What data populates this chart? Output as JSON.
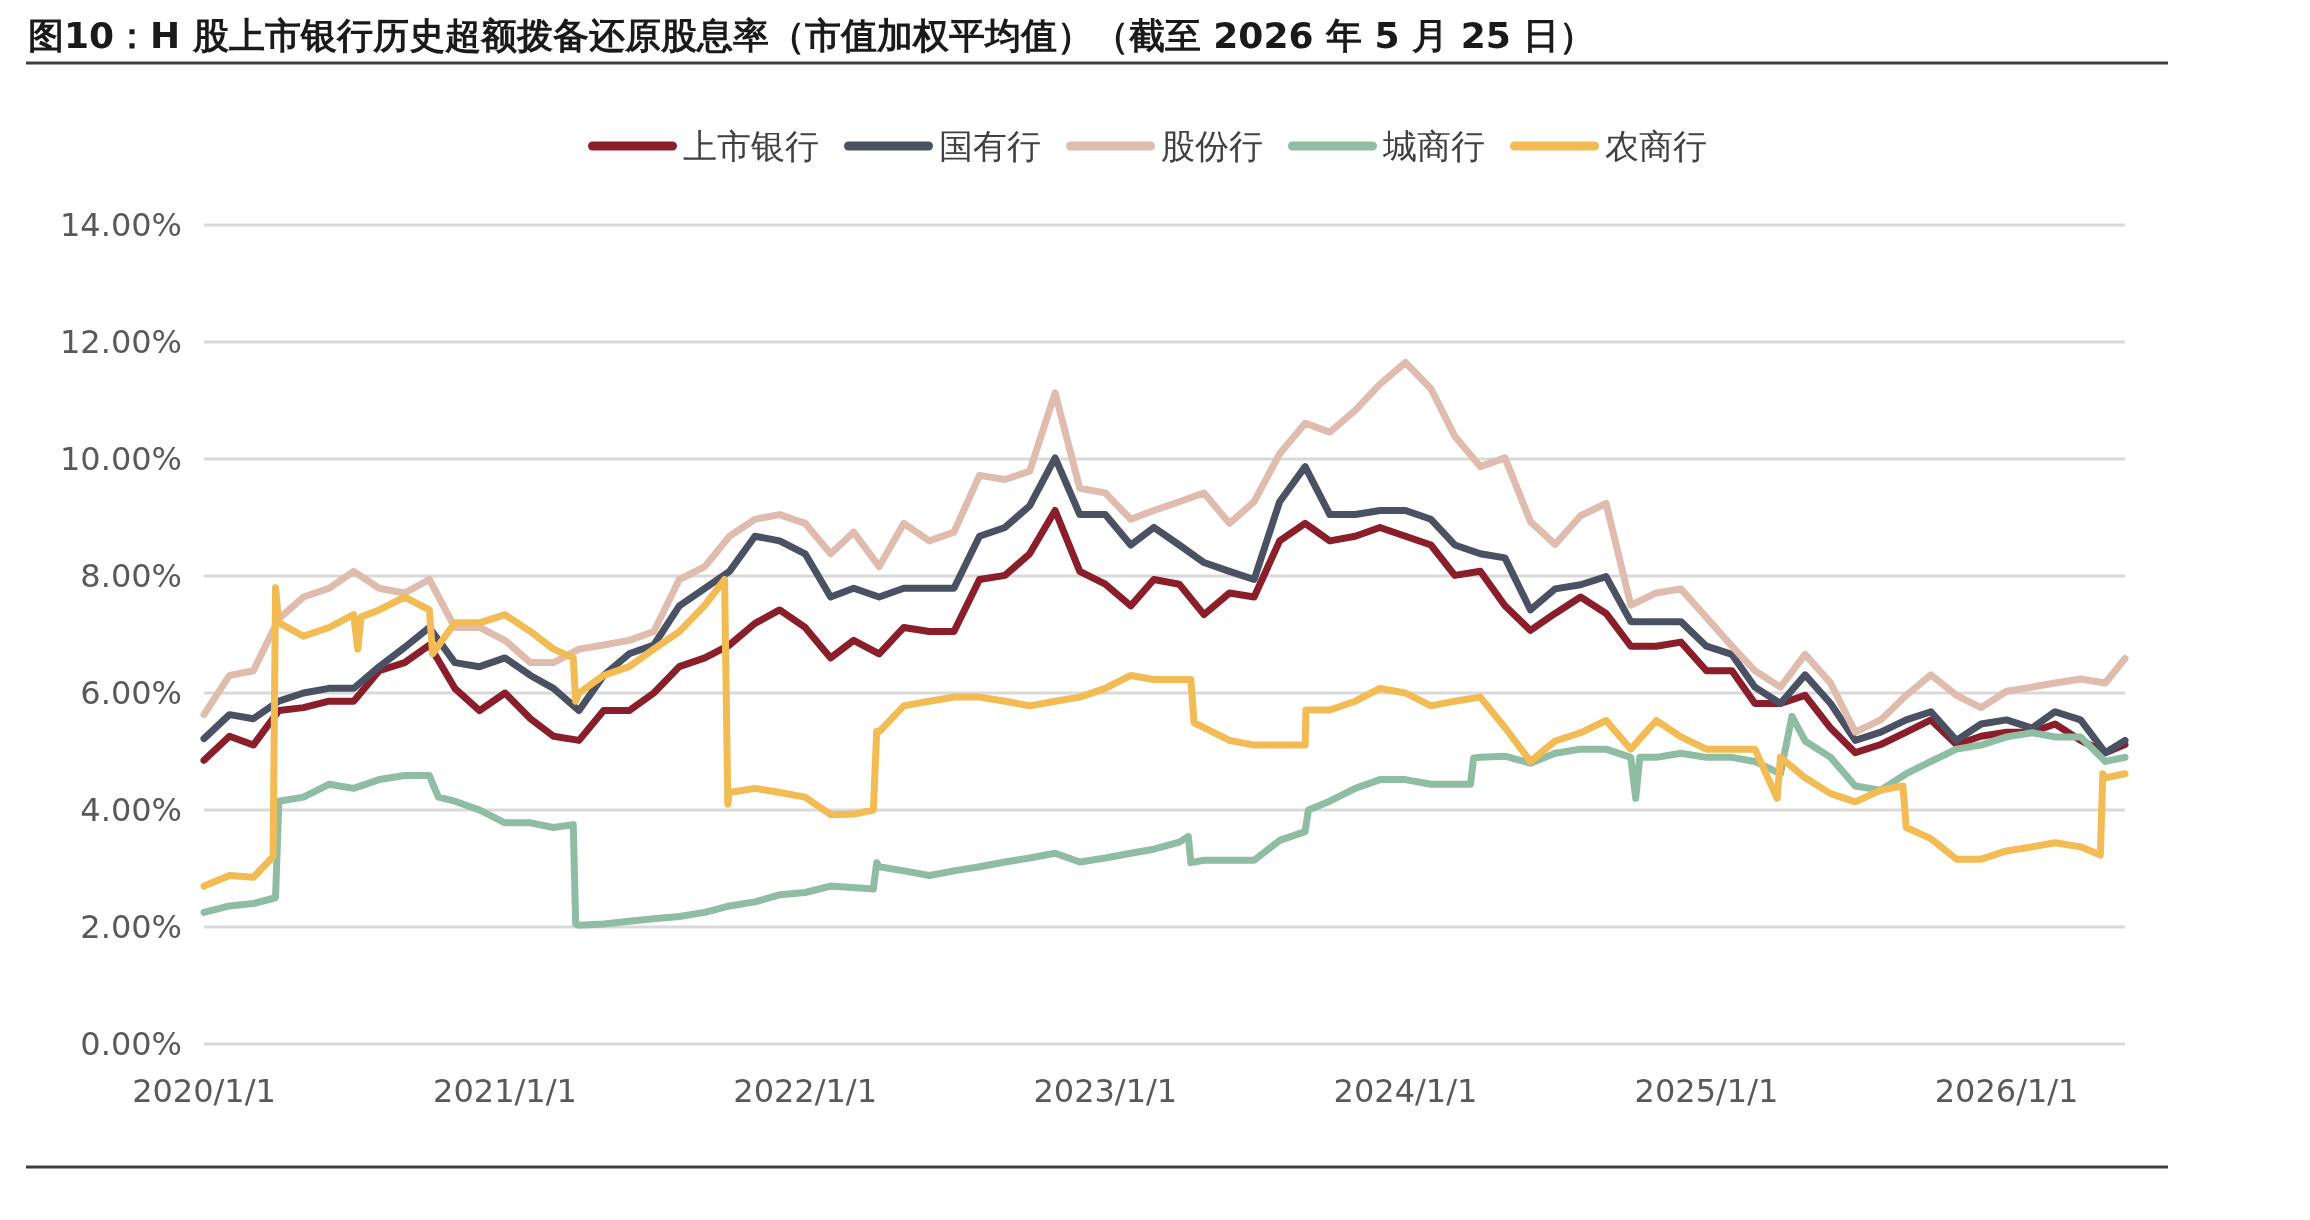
{
  "chart_data": {
    "type": "line",
    "title": "图10：H 股上市银行历史超额拨备还原股息率（市值加权平均值）（截至 2026 年 5 月 25 日）",
    "xlim": [
      "2020-01-01",
      "2026-05-25"
    ],
    "xticks": [
      {
        "value": "2020-01-01",
        "label": "2020/1/1"
      },
      {
        "value": "2021-01-01",
        "label": "2021/1/1"
      },
      {
        "value": "2022-01-01",
        "label": "2022/1/1"
      },
      {
        "value": "2023-01-01",
        "label": "2023/1/1"
      },
      {
        "value": "2024-01-01",
        "label": "2024/1/1"
      },
      {
        "value": "2025-01-01",
        "label": "2025/1/1"
      },
      {
        "value": "2026-01-01",
        "label": "2026/1/1"
      }
    ],
    "ylim": [
      0,
      14
    ],
    "yticks": [
      {
        "value": 0,
        "label": "0.00%"
      },
      {
        "value": 2,
        "label": "2.00%"
      },
      {
        "value": 4,
        "label": "4.00%"
      },
      {
        "value": 6,
        "label": "6.00%"
      },
      {
        "value": 8,
        "label": "8.00%"
      },
      {
        "value": 10,
        "label": "10.00%"
      },
      {
        "value": 12,
        "label": "12.00%"
      },
      {
        "value": 14,
        "label": "14.00%"
      }
    ],
    "grid": "y",
    "legend": "top",
    "marker": "none",
    "line_style": "solid",
    "series": [
      {
        "name": "上市银行",
        "color": "#8b1e2b",
        "x": [
          "2020-01-01",
          "2020-02-01",
          "2020-03-01",
          "2020-04-01",
          "2020-05-01",
          "2020-06-01",
          "2020-07-01",
          "2020-08-01",
          "2020-09-01",
          "2020-10-01",
          "2020-11-01",
          "2020-12-01",
          "2021-01-01",
          "2021-02-01",
          "2021-03-01",
          "2021-04-01",
          "2021-05-01",
          "2021-06-01",
          "2021-07-01",
          "2021-08-01",
          "2021-09-01",
          "2021-10-01",
          "2021-11-01",
          "2021-12-01",
          "2022-01-01",
          "2022-02-01",
          "2022-03-01",
          "2022-04-01",
          "2022-05-01",
          "2022-06-01",
          "2022-07-01",
          "2022-08-01",
          "2022-09-01",
          "2022-10-01",
          "2022-11-01",
          "2022-12-01",
          "2023-01-01",
          "2023-02-01",
          "2023-03-01",
          "2023-04-01",
          "2023-05-01",
          "2023-06-01",
          "2023-07-01",
          "2023-08-01",
          "2023-09-01",
          "2023-10-01",
          "2023-11-01",
          "2023-12-01",
          "2024-01-01",
          "2024-02-01",
          "2024-03-01",
          "2024-04-01",
          "2024-05-01",
          "2024-06-01",
          "2024-07-01",
          "2024-08-01",
          "2024-09-01",
          "2024-10-01",
          "2024-11-01",
          "2024-12-01",
          "2025-01-01",
          "2025-02-01",
          "2025-03-01",
          "2025-04-01",
          "2025-05-01",
          "2025-06-01",
          "2025-07-01",
          "2025-08-01",
          "2025-09-01",
          "2025-10-01",
          "2025-11-01",
          "2025-12-01",
          "2026-01-01",
          "2026-02-01",
          "2026-03-01",
          "2026-04-01",
          "2026-05-01",
          "2026-05-25"
        ],
        "values": [
          4.85,
          5.26,
          5.11,
          5.7,
          5.75,
          5.86,
          5.86,
          6.38,
          6.52,
          6.82,
          6.08,
          5.7,
          6.0,
          5.56,
          5.26,
          5.19,
          5.7,
          5.7,
          6.0,
          6.45,
          6.6,
          6.82,
          7.19,
          7.42,
          7.12,
          6.6,
          6.9,
          6.67,
          7.12,
          7.05,
          7.05,
          7.94,
          8.01,
          8.38,
          9.12,
          8.08,
          7.86,
          7.49,
          7.94,
          7.86,
          7.34,
          7.71,
          7.64,
          8.6,
          8.9,
          8.6,
          8.68,
          8.83,
          8.68,
          8.53,
          8.01,
          8.08,
          7.49,
          7.07,
          7.36,
          7.64,
          7.36,
          6.8,
          6.8,
          6.87,
          6.38,
          6.38,
          5.82,
          5.82,
          5.96,
          5.4,
          4.98,
          5.12,
          5.33,
          5.54,
          5.12,
          5.26,
          5.33,
          5.33,
          5.47,
          5.19,
          4.98,
          5.12
        ]
      },
      {
        "name": "国有行",
        "color": "#4a5163",
        "x": [
          "2020-01-01",
          "2020-02-01",
          "2020-03-01",
          "2020-04-01",
          "2020-05-01",
          "2020-06-01",
          "2020-07-01",
          "2020-08-01",
          "2020-09-01",
          "2020-10-01",
          "2020-11-01",
          "2020-12-01",
          "2021-01-01",
          "2021-02-01",
          "2021-03-01",
          "2021-04-01",
          "2021-05-01",
          "2021-06-01",
          "2021-07-01",
          "2021-08-01",
          "2021-09-01",
          "2021-10-01",
          "2021-11-01",
          "2021-12-01",
          "2022-01-01",
          "2022-02-01",
          "2022-03-01",
          "2022-04-01",
          "2022-05-01",
          "2022-06-01",
          "2022-07-01",
          "2022-08-01",
          "2022-09-01",
          "2022-10-01",
          "2022-11-01",
          "2022-12-01",
          "2023-01-01",
          "2023-02-01",
          "2023-03-01",
          "2023-04-01",
          "2023-05-01",
          "2023-06-01",
          "2023-07-01",
          "2023-08-01",
          "2023-09-01",
          "2023-10-01",
          "2023-11-01",
          "2023-12-01",
          "2024-01-01",
          "2024-02-01",
          "2024-03-01",
          "2024-04-01",
          "2024-05-01",
          "2024-06-01",
          "2024-07-01",
          "2024-08-01",
          "2024-09-01",
          "2024-10-01",
          "2024-11-01",
          "2024-12-01",
          "2025-01-01",
          "2025-02-01",
          "2025-03-01",
          "2025-04-01",
          "2025-05-01",
          "2025-06-01",
          "2025-07-01",
          "2025-08-01",
          "2025-09-01",
          "2025-10-01",
          "2025-11-01",
          "2025-12-01",
          "2026-01-01",
          "2026-02-01",
          "2026-03-01",
          "2026-04-01",
          "2026-05-01",
          "2026-05-25"
        ],
        "values": [
          5.22,
          5.63,
          5.56,
          5.86,
          6.0,
          6.08,
          6.08,
          6.45,
          6.78,
          7.12,
          6.52,
          6.45,
          6.6,
          6.3,
          6.08,
          5.7,
          6.3,
          6.67,
          6.82,
          7.49,
          7.79,
          8.08,
          8.68,
          8.6,
          8.38,
          7.64,
          7.79,
          7.64,
          7.79,
          7.79,
          7.79,
          8.68,
          8.83,
          9.2,
          10.02,
          9.05,
          9.05,
          8.53,
          8.83,
          8.53,
          8.23,
          8.08,
          7.94,
          9.27,
          9.87,
          9.05,
          9.05,
          9.12,
          9.12,
          8.97,
          8.53,
          8.38,
          8.31,
          7.42,
          7.78,
          7.85,
          7.99,
          7.22,
          7.22,
          7.22,
          6.8,
          6.66,
          6.1,
          5.82,
          6.31,
          5.82,
          5.19,
          5.33,
          5.54,
          5.68,
          5.19,
          5.47,
          5.54,
          5.4,
          5.68,
          5.54,
          4.98,
          5.19
        ]
      },
      {
        "name": "股份行",
        "color": "#dfbcae",
        "x": [
          "2020-01-01",
          "2020-02-01",
          "2020-03-01",
          "2020-04-01",
          "2020-05-01",
          "2020-06-01",
          "2020-07-01",
          "2020-08-01",
          "2020-09-01",
          "2020-10-01",
          "2020-11-01",
          "2020-12-01",
          "2021-01-01",
          "2021-02-01",
          "2021-03-01",
          "2021-04-01",
          "2021-05-01",
          "2021-06-01",
          "2021-07-01",
          "2021-08-01",
          "2021-09-01",
          "2021-10-01",
          "2021-11-01",
          "2021-12-01",
          "2022-01-01",
          "2022-02-01",
          "2022-03-01",
          "2022-04-01",
          "2022-05-01",
          "2022-06-01",
          "2022-07-01",
          "2022-08-01",
          "2022-09-01",
          "2022-10-01",
          "2022-11-01",
          "2022-12-01",
          "2023-01-01",
          "2023-02-01",
          "2023-03-01",
          "2023-04-01",
          "2023-05-01",
          "2023-06-01",
          "2023-07-01",
          "2023-08-01",
          "2023-09-01",
          "2023-10-01",
          "2023-11-01",
          "2023-12-01",
          "2024-01-01",
          "2024-02-01",
          "2024-03-01",
          "2024-04-01",
          "2024-05-01",
          "2024-06-01",
          "2024-07-01",
          "2024-08-01",
          "2024-09-01",
          "2024-10-01",
          "2024-11-01",
          "2024-12-01",
          "2025-01-01",
          "2025-02-01",
          "2025-03-01",
          "2025-04-01",
          "2025-05-01",
          "2025-06-01",
          "2025-07-01",
          "2025-08-01",
          "2025-09-01",
          "2025-10-01",
          "2025-11-01",
          "2025-12-01",
          "2026-01-01",
          "2026-02-01",
          "2026-03-01",
          "2026-04-01",
          "2026-05-01",
          "2026-05-25"
        ],
        "values": [
          5.63,
          6.3,
          6.38,
          7.27,
          7.64,
          7.79,
          8.08,
          7.79,
          7.71,
          7.94,
          7.12,
          7.12,
          6.9,
          6.52,
          6.52,
          6.75,
          6.82,
          6.9,
          7.05,
          7.94,
          8.16,
          8.68,
          8.97,
          9.05,
          8.9,
          8.38,
          8.75,
          8.16,
          8.9,
          8.6,
          8.75,
          9.72,
          9.65,
          9.79,
          11.13,
          9.5,
          9.42,
          8.97,
          9.12,
          9.27,
          9.42,
          8.9,
          9.27,
          10.09,
          10.61,
          10.46,
          10.83,
          11.28,
          11.65,
          11.2,
          10.39,
          9.87,
          10.02,
          8.93,
          8.54,
          9.03,
          9.24,
          7.5,
          7.71,
          7.78,
          7.29,
          6.8,
          6.38,
          6.1,
          6.66,
          6.17,
          5.33,
          5.54,
          5.96,
          6.31,
          5.96,
          5.75,
          6.03,
          6.1,
          6.17,
          6.24,
          6.17,
          6.59
        ]
      },
      {
        "name": "城商行",
        "color": "#8fbda3",
        "x": [
          "2020-01-01",
          "2020-02-01",
          "2020-03-01",
          "2020-03-28",
          "2020-04-01",
          "2020-05-01",
          "2020-06-01",
          "2020-07-01",
          "2020-08-01",
          "2020-09-01",
          "2020-10-01",
          "2020-10-12",
          "2020-11-01",
          "2020-12-01",
          "2021-01-01",
          "2021-02-01",
          "2021-03-01",
          "2021-03-25",
          "2021-03-28",
          "2021-04-01",
          "2021-05-01",
          "2021-06-01",
          "2021-07-01",
          "2021-08-01",
          "2021-09-01",
          "2021-10-01",
          "2021-11-01",
          "2021-12-01",
          "2022-01-01",
          "2022-02-01",
          "2022-03-25",
          "2022-03-29",
          "2022-04-01",
          "2022-05-01",
          "2022-06-01",
          "2022-07-01",
          "2022-08-01",
          "2022-09-01",
          "2022-10-01",
          "2022-11-01",
          "2022-12-01",
          "2023-01-01",
          "2023-02-01",
          "2023-03-01",
          "2023-04-01",
          "2023-04-12",
          "2023-04-15",
          "2023-05-01",
          "2023-06-01",
          "2023-07-01",
          "2023-08-01",
          "2023-09-01",
          "2023-09-05",
          "2023-10-01",
          "2023-11-01",
          "2023-12-01",
          "2024-01-01",
          "2024-02-01",
          "2024-03-01",
          "2024-03-20",
          "2024-03-24",
          "2024-04-01",
          "2024-05-01",
          "2024-06-01",
          "2024-07-01",
          "2024-08-01",
          "2024-09-01",
          "2024-10-01",
          "2024-10-07",
          "2024-10-12",
          "2024-11-01",
          "2024-12-01",
          "2025-01-01",
          "2025-02-01",
          "2025-03-01",
          "2025-04-01",
          "2025-04-15",
          "2025-05-01",
          "2025-06-01",
          "2025-07-01",
          "2025-08-01",
          "2025-09-01",
          "2025-10-01",
          "2025-11-01",
          "2025-12-01",
          "2026-01-01",
          "2026-02-01",
          "2026-03-01",
          "2026-04-01",
          "2026-05-01",
          "2026-05-25"
        ],
        "values": [
          2.25,
          2.36,
          2.4,
          2.5,
          4.15,
          4.22,
          4.44,
          4.37,
          4.52,
          4.59,
          4.59,
          4.22,
          4.15,
          4.0,
          3.78,
          3.78,
          3.7,
          3.75,
          2.05,
          2.03,
          2.05,
          2.1,
          2.14,
          2.18,
          2.25,
          2.36,
          2.43,
          2.55,
          2.59,
          2.7,
          2.65,
          3.1,
          3.03,
          2.96,
          2.88,
          2.96,
          3.03,
          3.11,
          3.18,
          3.26,
          3.11,
          3.18,
          3.26,
          3.33,
          3.45,
          3.55,
          3.1,
          3.14,
          3.14,
          3.14,
          3.48,
          3.63,
          4.0,
          4.15,
          4.37,
          4.52,
          4.52,
          4.44,
          4.44,
          4.44,
          4.89,
          4.9,
          4.92,
          4.8,
          4.97,
          5.04,
          5.04,
          4.9,
          4.2,
          4.9,
          4.9,
          4.97,
          4.9,
          4.9,
          4.83,
          4.62,
          5.6,
          5.18,
          4.9,
          4.41,
          4.34,
          4.62,
          4.83,
          5.04,
          5.11,
          5.25,
          5.32,
          5.25,
          5.25,
          4.83,
          4.9
        ]
      },
      {
        "name": "农商行",
        "color": "#f2bb53",
        "x": [
          "2020-01-01",
          "2020-02-01",
          "2020-03-01",
          "2020-03-25",
          "2020-03-28",
          "2020-04-01",
          "2020-05-01",
          "2020-06-01",
          "2020-07-01",
          "2020-07-06",
          "2020-07-10",
          "2020-08-01",
          "2020-09-01",
          "2020-10-01",
          "2020-10-05",
          "2020-11-01",
          "2020-12-01",
          "2021-01-01",
          "2021-02-01",
          "2021-03-01",
          "2021-03-25",
          "2021-03-28",
          "2021-04-01",
          "2021-05-01",
          "2021-06-01",
          "2021-07-01",
          "2021-08-01",
          "2021-09-01",
          "2021-09-25",
          "2021-09-29",
          "2021-10-01",
          "2021-11-01",
          "2021-12-01",
          "2022-01-01",
          "2022-02-01",
          "2022-03-01",
          "2022-03-25",
          "2022-03-29",
          "2022-04-01",
          "2022-05-01",
          "2022-06-01",
          "2022-07-01",
          "2022-08-01",
          "2022-09-01",
          "2022-10-01",
          "2022-11-01",
          "2022-12-01",
          "2023-01-01",
          "2023-02-01",
          "2023-03-01",
          "2023-04-01",
          "2023-04-15",
          "2023-04-19",
          "2023-05-01",
          "2023-06-01",
          "2023-07-01",
          "2023-08-01",
          "2023-09-01",
          "2023-09-02",
          "2023-10-01",
          "2023-11-01",
          "2023-12-01",
          "2024-01-01",
          "2024-02-01",
          "2024-03-01",
          "2024-04-01",
          "2024-05-01",
          "2024-06-01",
          "2024-07-01",
          "2024-08-01",
          "2024-09-01",
          "2024-10-01",
          "2024-11-01",
          "2024-12-01",
          "2025-01-01",
          "2025-02-01",
          "2025-03-01",
          "2025-03-28",
          "2025-04-01",
          "2025-05-01",
          "2025-06-01",
          "2025-07-01",
          "2025-08-01",
          "2025-08-28",
          "2025-09-01",
          "2025-10-01",
          "2025-11-01",
          "2025-12-01",
          "2026-01-01",
          "2026-02-01",
          "2026-03-01",
          "2026-04-01",
          "2026-04-25",
          "2026-04-28",
          "2026-05-01",
          "2026-05-25"
        ],
        "values": [
          2.7,
          2.88,
          2.85,
          3.2,
          7.8,
          7.2,
          6.97,
          7.12,
          7.34,
          6.75,
          7.3,
          7.42,
          7.64,
          7.42,
          6.67,
          7.2,
          7.2,
          7.34,
          7.05,
          6.75,
          6.6,
          5.86,
          6.0,
          6.3,
          6.45,
          6.75,
          7.05,
          7.5,
          7.94,
          4.1,
          4.3,
          4.37,
          4.3,
          4.22,
          3.92,
          3.93,
          4.0,
          5.34,
          5.34,
          5.78,
          5.86,
          5.93,
          5.93,
          5.86,
          5.78,
          5.86,
          5.93,
          6.08,
          6.3,
          6.23,
          6.23,
          6.23,
          5.49,
          5.41,
          5.19,
          5.11,
          5.11,
          5.11,
          5.71,
          5.71,
          5.86,
          6.08,
          6.0,
          5.78,
          5.86,
          5.93,
          5.41,
          4.83,
          5.18,
          5.32,
          5.53,
          5.04,
          5.53,
          5.25,
          5.04,
          5.04,
          5.04,
          4.2,
          4.9,
          4.55,
          4.28,
          4.14,
          4.34,
          4.41,
          3.7,
          3.51,
          3.16,
          3.16,
          3.3,
          3.37,
          3.44,
          3.37,
          3.23,
          4.62,
          4.55,
          4.62
        ]
      }
    ]
  }
}
